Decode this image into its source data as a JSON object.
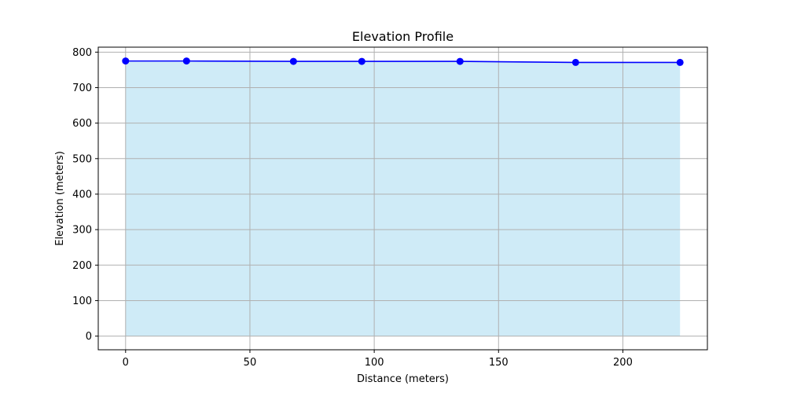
{
  "chart_data": {
    "type": "area",
    "title": "Elevation Profile",
    "xlabel": "Distance (meters)",
    "ylabel": "Elevation (meters)",
    "xlim": [
      -11,
      234
    ],
    "ylim": [
      -38.5,
      814
    ],
    "xticks": [
      0,
      50,
      100,
      150,
      200
    ],
    "yticks": [
      0,
      100,
      200,
      300,
      400,
      500,
      600,
      700,
      800
    ],
    "grid": true,
    "series": [
      {
        "x": [
          0,
          24.5,
          67.5,
          95,
          134.5,
          181,
          223
        ],
        "values": [
          775,
          775,
          774,
          774,
          774,
          771,
          771
        ]
      }
    ],
    "colors": {
      "line": "#0000ff",
      "marker": "#0000ff",
      "fill": "#87ceeb",
      "fill_opacity": 0.4,
      "grid": "#b0b0b0"
    }
  }
}
